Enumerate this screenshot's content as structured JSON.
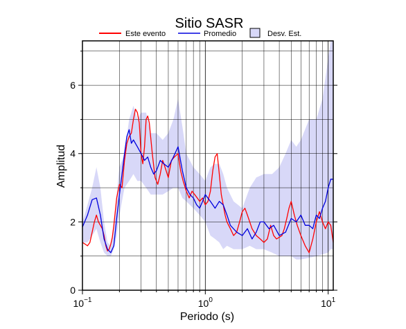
{
  "chart_data": {
    "type": "line",
    "title": "Sitio SASR",
    "xlabel": "Periodo (s)",
    "ylabel": "Amplitud",
    "x_scale": "log",
    "xlim": [
      0.1,
      11
    ],
    "ylim": [
      0,
      7.3
    ],
    "grid": true,
    "legend_placement": "top",
    "x_ticks": [
      {
        "value": 0.1,
        "base": "10",
        "exp": "−1"
      },
      {
        "value": 1,
        "base": "10",
        "exp": "0"
      },
      {
        "value": 10,
        "base": "10",
        "exp": "1"
      }
    ],
    "y_ticks": [
      {
        "value": 0,
        "label": "0"
      },
      {
        "value": 2,
        "label": "2"
      },
      {
        "value": 4,
        "label": "4"
      },
      {
        "value": 6,
        "label": "6"
      }
    ],
    "legend": [
      {
        "label": "Este evento",
        "kind": "line",
        "color": "#ff0000"
      },
      {
        "label": "Promedio",
        "kind": "line",
        "color": "#0000dd"
      },
      {
        "label": "Desv. Est.",
        "kind": "band",
        "color": "#d8d8f8"
      }
    ],
    "band": {
      "name": "Desv. Est.",
      "color": "#d8d8f8",
      "x": [
        0.1,
        0.11,
        0.12,
        0.13,
        0.14,
        0.15,
        0.16,
        0.17,
        0.18,
        0.19,
        0.2,
        0.22,
        0.24,
        0.26,
        0.28,
        0.3,
        0.33,
        0.36,
        0.4,
        0.45,
        0.5,
        0.55,
        0.6,
        0.65,
        0.7,
        0.8,
        0.9,
        1.0,
        1.1,
        1.2,
        1.3,
        1.4,
        1.5,
        1.7,
        2.0,
        2.3,
        2.6,
        3.0,
        3.5,
        4.0,
        4.5,
        5.0,
        5.5,
        6.0,
        7.0,
        8.0,
        9.0,
        10.0,
        10.5,
        11.0
      ],
      "upper": [
        2.0,
        2.5,
        3.0,
        3.6,
        3.0,
        2.0,
        1.4,
        1.3,
        1.8,
        2.8,
        3.6,
        4.0,
        5.0,
        5.4,
        5.0,
        5.2,
        5.2,
        4.6,
        4.6,
        4.4,
        4.6,
        5.0,
        5.6,
        4.8,
        4.0,
        3.6,
        3.4,
        3.2,
        3.6,
        3.7,
        3.7,
        3.4,
        3.0,
        2.6,
        2.4,
        3.0,
        3.3,
        3.4,
        3.4,
        3.6,
        4.0,
        4.4,
        4.2,
        4.4,
        5.0,
        5.0,
        5.6,
        6.8,
        7.3,
        7.3
      ],
      "lower": [
        1.4,
        1.4,
        1.6,
        1.8,
        1.4,
        1.1,
        1.0,
        1.0,
        1.2,
        1.6,
        2.2,
        3.0,
        3.2,
        3.4,
        3.2,
        3.2,
        3.0,
        2.8,
        2.8,
        2.8,
        2.9,
        3.0,
        3.0,
        2.7,
        2.6,
        2.4,
        2.2,
        2.0,
        1.6,
        1.5,
        1.4,
        1.2,
        1.3,
        1.2,
        1.2,
        1.3,
        1.2,
        1.2,
        1.1,
        1.0,
        1.0,
        1.0,
        0.9,
        0.9,
        0.95,
        1.0,
        1.05,
        1.1,
        1.2,
        1.2
      ]
    },
    "series": [
      {
        "name": "Este evento",
        "color": "#ff0000",
        "x": [
          0.1,
          0.105,
          0.11,
          0.115,
          0.12,
          0.125,
          0.13,
          0.135,
          0.14,
          0.145,
          0.15,
          0.155,
          0.16,
          0.165,
          0.17,
          0.175,
          0.18,
          0.19,
          0.2,
          0.21,
          0.22,
          0.23,
          0.24,
          0.25,
          0.26,
          0.27,
          0.28,
          0.29,
          0.3,
          0.31,
          0.32,
          0.33,
          0.34,
          0.35,
          0.37,
          0.39,
          0.41,
          0.43,
          0.45,
          0.47,
          0.5,
          0.53,
          0.56,
          0.6,
          0.63,
          0.66,
          0.7,
          0.74,
          0.78,
          0.82,
          0.86,
          0.9,
          0.95,
          1.0,
          1.05,
          1.1,
          1.15,
          1.2,
          1.25,
          1.3,
          1.35,
          1.4,
          1.45,
          1.5,
          1.6,
          1.7,
          1.8,
          1.9,
          2.0,
          2.1,
          2.2,
          2.4,
          2.6,
          2.8,
          3.0,
          3.2,
          3.4,
          3.6,
          3.8,
          4.0,
          4.2,
          4.4,
          4.6,
          4.8,
          5.0,
          5.3,
          5.6,
          6.0,
          6.5,
          7.0,
          7.5,
          8.0,
          8.5,
          9.0,
          9.5,
          10.0,
          10.5,
          11.0
        ],
        "y": [
          1.4,
          1.35,
          1.3,
          1.4,
          1.7,
          2.0,
          2.2,
          2.0,
          1.9,
          1.8,
          1.6,
          1.3,
          1.15,
          1.2,
          1.35,
          1.55,
          1.9,
          2.7,
          3.1,
          3.0,
          3.8,
          4.3,
          4.5,
          4.6,
          5.0,
          5.3,
          5.2,
          4.9,
          4.0,
          3.7,
          4.2,
          5.0,
          5.1,
          4.9,
          4.0,
          3.3,
          3.1,
          3.4,
          3.8,
          3.6,
          3.3,
          3.8,
          3.9,
          4.0,
          3.5,
          3.2,
          2.9,
          2.7,
          2.9,
          2.8,
          2.7,
          2.6,
          2.7,
          2.5,
          2.6,
          2.9,
          3.5,
          3.9,
          4.0,
          3.4,
          2.8,
          2.5,
          2.2,
          2.0,
          1.8,
          1.6,
          1.7,
          2.0,
          2.3,
          2.4,
          2.2,
          1.8,
          1.6,
          1.5,
          1.4,
          1.5,
          1.9,
          1.6,
          1.5,
          1.55,
          1.6,
          1.8,
          2.1,
          2.4,
          2.6,
          2.2,
          1.9,
          1.6,
          1.3,
          1.1,
          1.5,
          2.0,
          2.3,
          2.0,
          1.8,
          2.0,
          1.9,
          1.4
        ]
      },
      {
        "name": "Promedio",
        "color": "#0000dd",
        "x": [
          0.1,
          0.11,
          0.12,
          0.13,
          0.14,
          0.15,
          0.16,
          0.17,
          0.18,
          0.19,
          0.2,
          0.21,
          0.22,
          0.23,
          0.24,
          0.25,
          0.26,
          0.28,
          0.3,
          0.32,
          0.34,
          0.36,
          0.38,
          0.4,
          0.43,
          0.46,
          0.5,
          0.55,
          0.6,
          0.65,
          0.7,
          0.75,
          0.8,
          0.85,
          0.9,
          0.95,
          1.0,
          1.1,
          1.2,
          1.3,
          1.4,
          1.5,
          1.6,
          1.8,
          2.0,
          2.2,
          2.4,
          2.6,
          2.8,
          3.0,
          3.3,
          3.6,
          4.0,
          4.5,
          5.0,
          5.5,
          6.0,
          6.5,
          7.0,
          7.5,
          8.0,
          8.5,
          9.0,
          9.5,
          10.0,
          10.5,
          11.0
        ],
        "y": [
          1.85,
          2.2,
          2.65,
          2.7,
          2.2,
          1.5,
          1.2,
          1.1,
          1.3,
          2.1,
          2.8,
          3.4,
          4.0,
          4.5,
          4.7,
          4.3,
          4.4,
          4.2,
          4.0,
          3.8,
          3.9,
          3.6,
          3.4,
          3.5,
          3.8,
          3.7,
          3.6,
          3.9,
          4.2,
          3.5,
          3.0,
          2.8,
          2.7,
          2.5,
          2.4,
          2.6,
          2.8,
          2.6,
          2.4,
          2.6,
          2.5,
          2.2,
          1.9,
          1.7,
          1.6,
          1.8,
          1.5,
          1.7,
          2.0,
          2.0,
          1.8,
          1.9,
          1.6,
          1.7,
          2.1,
          2.0,
          2.2,
          1.9,
          1.9,
          1.8,
          2.2,
          2.1,
          2.4,
          2.6,
          3.0,
          3.25,
          3.25
        ]
      }
    ]
  }
}
